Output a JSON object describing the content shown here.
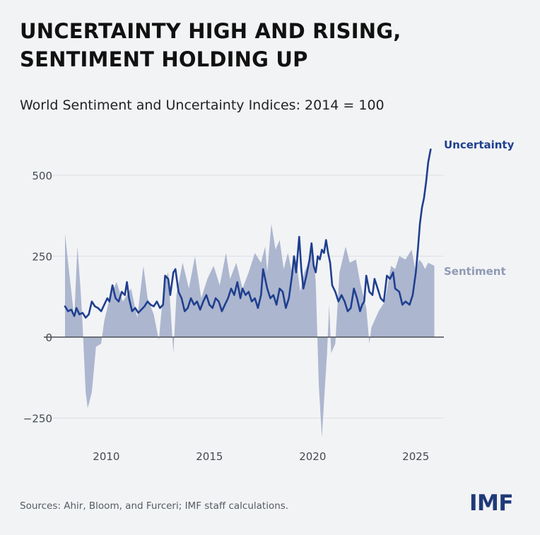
{
  "header": {
    "title_line1": "UNCERTAINTY HIGH AND RISING,",
    "title_line2": "SENTIMENT HOLDING UP",
    "subtitle": "World Sentiment and Uncertainty Indices: 2014 = 100"
  },
  "footer": {
    "source": "Sources: Ahir, Bloom, and Furceri; IMF staff calculations.",
    "logo": "IMF"
  },
  "colors": {
    "uncertainty": "#1f3f8f",
    "sentiment": "#a8b2cc",
    "grid": "#dcdfe5",
    "zero_line": "#4a4f57",
    "tick_text": "#444a52",
    "sentiment_label": "#8f9ab5"
  },
  "chart_data": {
    "type": "line",
    "x_axis": {
      "ticks": [
        2010,
        2015,
        2020,
        2025
      ],
      "range": [
        2008,
        2025.95
      ]
    },
    "y_axis": {
      "ticks": [
        -250,
        0,
        250,
        500
      ],
      "tick_labels": [
        "−250",
        "0",
        "250",
        "500"
      ],
      "range": [
        -320,
        620
      ]
    },
    "grid": true,
    "series": [
      {
        "name": "Sentiment",
        "style": "area",
        "label": "Sentiment",
        "points": [
          [
            2008.0,
            320
          ],
          [
            2008.2,
            200
          ],
          [
            2008.45,
            60
          ],
          [
            2008.6,
            280
          ],
          [
            2008.75,
            150
          ],
          [
            2008.85,
            40
          ],
          [
            2009.0,
            -170
          ],
          [
            2009.1,
            -220
          ],
          [
            2009.3,
            -170
          ],
          [
            2009.5,
            -30
          ],
          [
            2009.75,
            -20
          ],
          [
            2009.9,
            50
          ],
          [
            2010.2,
            130
          ],
          [
            2010.5,
            170
          ],
          [
            2010.8,
            110
          ],
          [
            2011.2,
            150
          ],
          [
            2011.5,
            60
          ],
          [
            2011.8,
            220
          ],
          [
            2012.0,
            120
          ],
          [
            2012.3,
            70
          ],
          [
            2012.55,
            -10
          ],
          [
            2012.8,
            170
          ],
          [
            2013.0,
            200
          ],
          [
            2013.25,
            -50
          ],
          [
            2013.4,
            130
          ],
          [
            2013.7,
            230
          ],
          [
            2014.0,
            150
          ],
          [
            2014.3,
            250
          ],
          [
            2014.6,
            120
          ],
          [
            2014.9,
            180
          ],
          [
            2015.2,
            220
          ],
          [
            2015.5,
            160
          ],
          [
            2015.8,
            260
          ],
          [
            2016.0,
            180
          ],
          [
            2016.3,
            230
          ],
          [
            2016.6,
            150
          ],
          [
            2016.9,
            200
          ],
          [
            2017.2,
            260
          ],
          [
            2017.5,
            230
          ],
          [
            2017.7,
            280
          ],
          [
            2017.8,
            200
          ],
          [
            2018.0,
            350
          ],
          [
            2018.2,
            270
          ],
          [
            2018.4,
            300
          ],
          [
            2018.6,
            210
          ],
          [
            2018.8,
            260
          ],
          [
            2019.0,
            200
          ],
          [
            2019.2,
            240
          ],
          [
            2019.4,
            140
          ],
          [
            2019.6,
            200
          ],
          [
            2019.8,
            230
          ],
          [
            2020.0,
            280
          ],
          [
            2020.15,
            170
          ],
          [
            2020.3,
            -150
          ],
          [
            2020.45,
            -310
          ],
          [
            2020.55,
            -200
          ],
          [
            2020.7,
            -50
          ],
          [
            2020.8,
            100
          ],
          [
            2020.9,
            -50
          ],
          [
            2021.1,
            -20
          ],
          [
            2021.3,
            200
          ],
          [
            2021.6,
            280
          ],
          [
            2021.8,
            230
          ],
          [
            2022.1,
            240
          ],
          [
            2022.3,
            170
          ],
          [
            2022.6,
            90
          ],
          [
            2022.75,
            -20
          ],
          [
            2022.85,
            30
          ],
          [
            2023.2,
            80
          ],
          [
            2023.5,
            110
          ],
          [
            2023.8,
            220
          ],
          [
            2024.0,
            210
          ],
          [
            2024.2,
            250
          ],
          [
            2024.5,
            240
          ],
          [
            2024.8,
            270
          ],
          [
            2025.0,
            200
          ],
          [
            2025.15,
            240
          ],
          [
            2025.3,
            230
          ],
          [
            2025.45,
            210
          ],
          [
            2025.6,
            230
          ],
          [
            2025.9,
            220
          ]
        ]
      },
      {
        "name": "Uncertainty",
        "style": "line",
        "label": "Uncertainty",
        "points": [
          [
            2008.0,
            95
          ],
          [
            2008.15,
            80
          ],
          [
            2008.3,
            85
          ],
          [
            2008.45,
            65
          ],
          [
            2008.55,
            90
          ],
          [
            2008.7,
            70
          ],
          [
            2008.85,
            75
          ],
          [
            2009.0,
            60
          ],
          [
            2009.15,
            70
          ],
          [
            2009.3,
            110
          ],
          [
            2009.45,
            95
          ],
          [
            2009.6,
            90
          ],
          [
            2009.75,
            80
          ],
          [
            2009.9,
            100
          ],
          [
            2010.05,
            120
          ],
          [
            2010.15,
            110
          ],
          [
            2010.3,
            160
          ],
          [
            2010.45,
            120
          ],
          [
            2010.6,
            110
          ],
          [
            2010.75,
            140
          ],
          [
            2010.9,
            130
          ],
          [
            2011.0,
            170
          ],
          [
            2011.1,
            120
          ],
          [
            2011.25,
            80
          ],
          [
            2011.4,
            90
          ],
          [
            2011.55,
            75
          ],
          [
            2011.7,
            85
          ],
          [
            2011.85,
            95
          ],
          [
            2012.0,
            110
          ],
          [
            2012.15,
            100
          ],
          [
            2012.3,
            95
          ],
          [
            2012.45,
            110
          ],
          [
            2012.6,
            90
          ],
          [
            2012.75,
            100
          ],
          [
            2012.85,
            190
          ],
          [
            2013.0,
            180
          ],
          [
            2013.1,
            130
          ],
          [
            2013.25,
            200
          ],
          [
            2013.35,
            210
          ],
          [
            2013.5,
            140
          ],
          [
            2013.65,
            120
          ],
          [
            2013.8,
            80
          ],
          [
            2013.95,
            90
          ],
          [
            2014.1,
            120
          ],
          [
            2014.25,
            100
          ],
          [
            2014.4,
            110
          ],
          [
            2014.55,
            85
          ],
          [
            2014.7,
            110
          ],
          [
            2014.85,
            130
          ],
          [
            2015.0,
            100
          ],
          [
            2015.15,
            90
          ],
          [
            2015.3,
            120
          ],
          [
            2015.45,
            110
          ],
          [
            2015.6,
            80
          ],
          [
            2015.75,
            100
          ],
          [
            2015.9,
            120
          ],
          [
            2016.05,
            150
          ],
          [
            2016.2,
            130
          ],
          [
            2016.35,
            170
          ],
          [
            2016.5,
            120
          ],
          [
            2016.6,
            150
          ],
          [
            2016.75,
            130
          ],
          [
            2016.9,
            140
          ],
          [
            2017.05,
            110
          ],
          [
            2017.2,
            120
          ],
          [
            2017.35,
            90
          ],
          [
            2017.5,
            130
          ],
          [
            2017.6,
            210
          ],
          [
            2017.7,
            180
          ],
          [
            2017.8,
            150
          ],
          [
            2017.95,
            120
          ],
          [
            2018.1,
            130
          ],
          [
            2018.25,
            100
          ],
          [
            2018.4,
            150
          ],
          [
            2018.55,
            140
          ],
          [
            2018.7,
            90
          ],
          [
            2018.85,
            120
          ],
          [
            2019.0,
            190
          ],
          [
            2019.1,
            250
          ],
          [
            2019.2,
            200
          ],
          [
            2019.35,
            310
          ],
          [
            2019.45,
            210
          ],
          [
            2019.55,
            150
          ],
          [
            2019.7,
            190
          ],
          [
            2019.85,
            240
          ],
          [
            2019.95,
            290
          ],
          [
            2020.05,
            220
          ],
          [
            2020.15,
            200
          ],
          [
            2020.25,
            250
          ],
          [
            2020.35,
            240
          ],
          [
            2020.45,
            270
          ],
          [
            2020.55,
            260
          ],
          [
            2020.65,
            300
          ],
          [
            2020.75,
            260
          ],
          [
            2020.85,
            230
          ],
          [
            2020.95,
            160
          ],
          [
            2021.1,
            140
          ],
          [
            2021.25,
            110
          ],
          [
            2021.4,
            130
          ],
          [
            2021.55,
            110
          ],
          [
            2021.7,
            80
          ],
          [
            2021.85,
            90
          ],
          [
            2022.0,
            150
          ],
          [
            2022.15,
            120
          ],
          [
            2022.3,
            80
          ],
          [
            2022.4,
            100
          ],
          [
            2022.5,
            110
          ],
          [
            2022.6,
            190
          ],
          [
            2022.75,
            140
          ],
          [
            2022.9,
            130
          ],
          [
            2023.0,
            180
          ],
          [
            2023.15,
            150
          ],
          [
            2023.3,
            120
          ],
          [
            2023.45,
            110
          ],
          [
            2023.6,
            190
          ],
          [
            2023.75,
            180
          ],
          [
            2023.9,
            200
          ],
          [
            2024.0,
            150
          ],
          [
            2024.2,
            140
          ],
          [
            2024.35,
            100
          ],
          [
            2024.5,
            110
          ],
          [
            2024.7,
            100
          ],
          [
            2024.85,
            130
          ],
          [
            2025.0,
            200
          ],
          [
            2025.1,
            270
          ],
          [
            2025.2,
            350
          ],
          [
            2025.3,
            400
          ],
          [
            2025.4,
            430
          ],
          [
            2025.5,
            480
          ],
          [
            2025.6,
            540
          ],
          [
            2025.72,
            580
          ]
        ]
      }
    ],
    "legend": "inline labels at right end of each series"
  }
}
